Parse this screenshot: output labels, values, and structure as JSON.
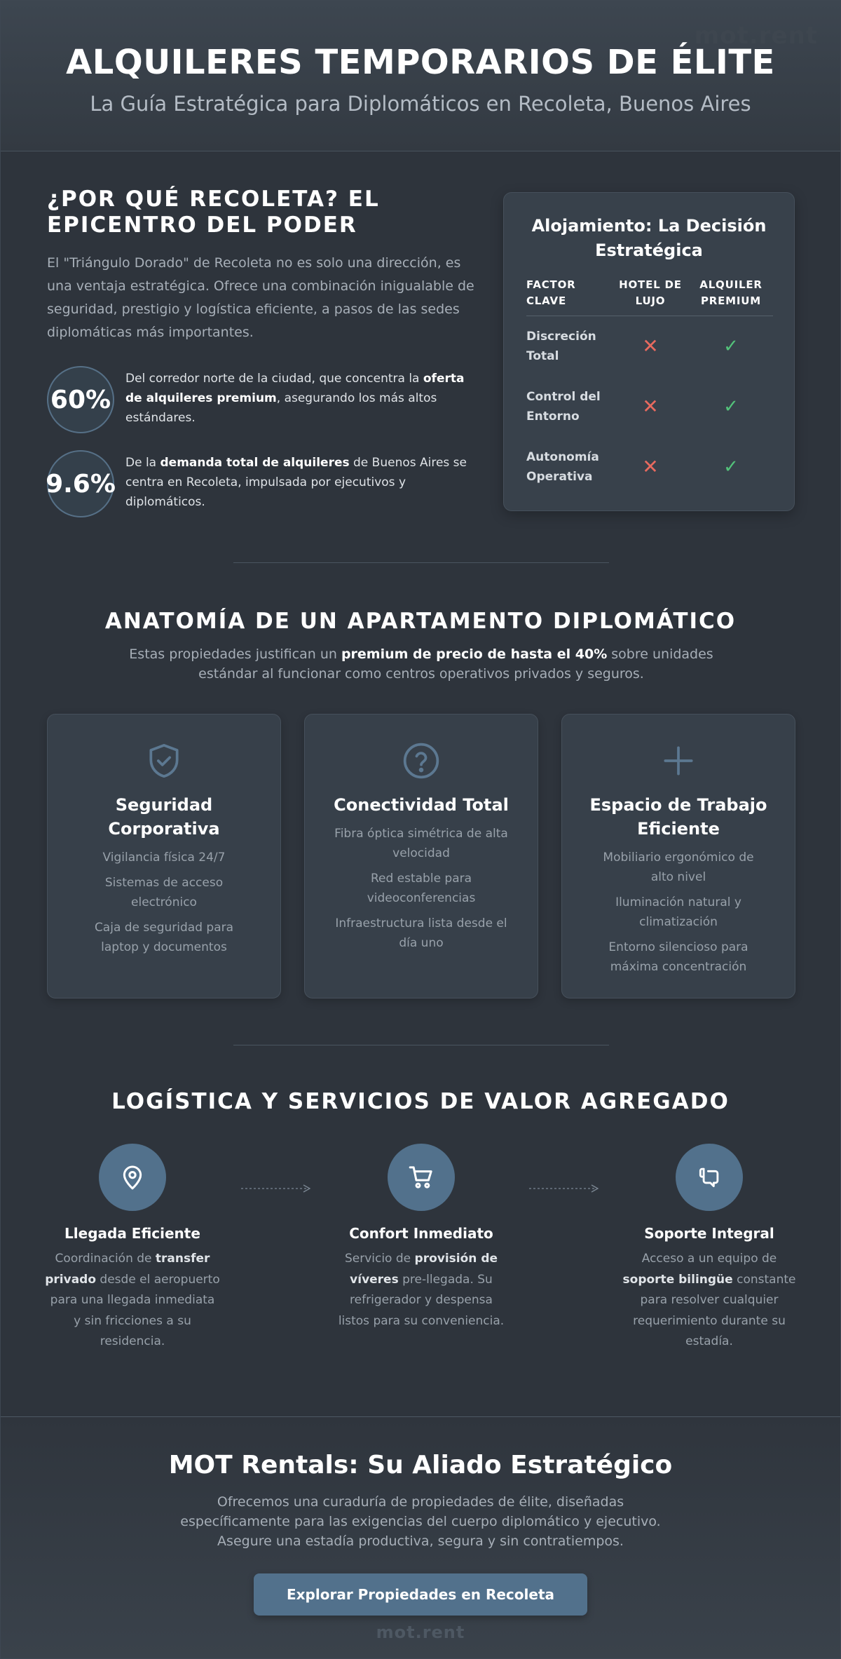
{
  "header": {
    "watermark": "mot.rent",
    "title": "ALQUILERES TEMPORARIOS DE ÉLITE",
    "subtitle": "La Guía Estratégica para Diplomáticos en Recoleta, Buenos Aires"
  },
  "why": {
    "title": "¿POR QUÉ RECOLETA? EL EPICENTRO DEL PODER",
    "text": "El \"Triángulo Dorado\" de Recoleta no es solo una dirección, es una ventaja estratégica. Ofrece una combinación inigualable de seguridad, prestigio y logística eficiente, a pasos de las sedes diplomáticas más importantes.",
    "stats": [
      {
        "value": "60%",
        "pre": "Del corredor norte de la ciudad, que concentra la ",
        "bold": "oferta de alquileres premium",
        "post": ", asegurando los más altos estándares."
      },
      {
        "value": "9.6%",
        "pre": "De la ",
        "bold": "demanda total de alquileres",
        "post": " de Buenos Aires se centra en Recoleta, impulsada por ejecutivos y diplomáticos."
      }
    ]
  },
  "decision": {
    "title": "Alojamiento: La Decisión Estratégica",
    "headers": [
      "FACTOR CLAVE",
      "HOTEL DE LUJO",
      "ALQUILER PREMIUM"
    ],
    "rows": [
      {
        "factor": "Discreción Total",
        "hotel": "✕",
        "rental": "✓"
      },
      {
        "factor": "Control del Entorno",
        "hotel": "✕",
        "rental": "✓"
      },
      {
        "factor": "Autonomía Operativa",
        "hotel": "✕",
        "rental": "✓"
      }
    ]
  },
  "anatomy": {
    "title": "ANATOMÍA DE UN APARTAMENTO DIPLOMÁTICO",
    "intro_pre": "Estas propiedades justifican un ",
    "intro_bold": "premium de precio de hasta el 40%",
    "intro_post": " sobre unidades estándar al funcionar como centros operativos privados y seguros.",
    "features": [
      {
        "icon": "shield-check-icon",
        "title": "Seguridad Corporativa",
        "items": [
          "Vigilancia física 24/7",
          "Sistemas de acceso electrónico",
          "Caja de seguridad para laptop y documentos"
        ]
      },
      {
        "icon": "question-circle-icon",
        "title": "Conectividad Total",
        "items": [
          "Fibra óptica simétrica de alta velocidad",
          "Red estable para videoconferencias",
          "Infraestructura lista desde el día uno"
        ]
      },
      {
        "icon": "plus-icon",
        "title": "Espacio de Trabajo Eficiente",
        "items": [
          "Mobiliario ergonómico de alto nivel",
          "Iluminación natural y climatización",
          "Entorno silencioso para máxima concentración"
        ]
      }
    ]
  },
  "logistics": {
    "title": "LOGÍSTICA Y SERVICIOS DE VALOR AGREGADO",
    "steps": [
      {
        "icon": "map-pin-icon",
        "title": "Llegada Eficiente",
        "pre": "Coordinación de ",
        "bold": "transfer privado",
        "post": " desde el aeropuerto para una llegada inmediata y sin fricciones a su residencia."
      },
      {
        "icon": "shopping-cart-icon",
        "title": "Confort Inmediato",
        "pre": "Servicio de ",
        "bold": "provisión de víveres",
        "post": " pre-llegada. Su refrigerador y despensa listos para su conveniencia."
      },
      {
        "icon": "support-chat-icon",
        "title": "Soporte Integral",
        "pre": "Acceso a un equipo de ",
        "bold": "soporte bilingüe",
        "post": " constante para resolver cualquier requerimiento durante su estadía."
      }
    ]
  },
  "footer": {
    "title": "MOT Rentals: Su Aliado Estratégico",
    "text": "Ofrecemos una curaduría de propiedades de élite, diseñadas específicamente para las exigencias del cuerpo diplomático y ejecutivo. Asegure una estadía productiva, segura y sin contratiempos.",
    "cta": "Explorar Propiedades en Recoleta",
    "watermark": "mot.rent"
  },
  "colors": {
    "accent": "#52718c",
    "cross": "#e86a5f",
    "check": "#53c27a"
  }
}
